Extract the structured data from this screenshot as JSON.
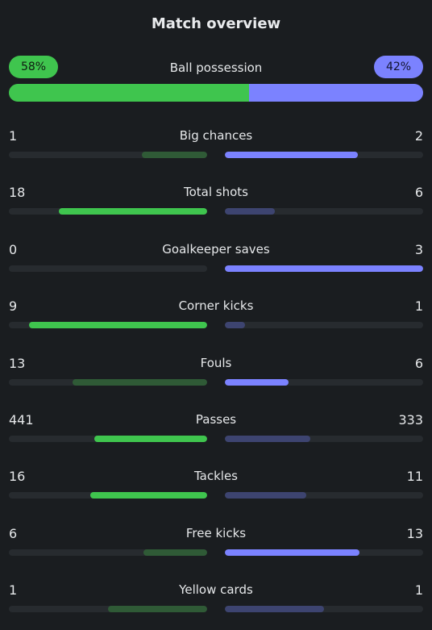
{
  "title": "Match overview",
  "possession": {
    "label": "Ball possession",
    "home_text": "58%",
    "away_text": "42%",
    "home_fraction": 0.58,
    "away_fraction": 0.42
  },
  "colors": {
    "home_strong": "#3fc54e",
    "home_weak": "#2f5a36",
    "away_strong": "#7b82ff",
    "away_weak": "#3d4470"
  },
  "stats": [
    {
      "label": "Big chances",
      "home": "1",
      "away": "2",
      "home_fill": 0.33,
      "away_fill": 0.67,
      "leader": "away"
    },
    {
      "label": "Total shots",
      "home": "18",
      "away": "6",
      "home_fill": 0.75,
      "away_fill": 0.25,
      "leader": "home"
    },
    {
      "label": "Goalkeeper saves",
      "home": "0",
      "away": "3",
      "home_fill": 0.0,
      "away_fill": 1.0,
      "leader": "away"
    },
    {
      "label": "Corner kicks",
      "home": "9",
      "away": "1",
      "home_fill": 0.9,
      "away_fill": 0.1,
      "leader": "home"
    },
    {
      "label": "Fouls",
      "home": "13",
      "away": "6",
      "home_fill": 0.68,
      "away_fill": 0.32,
      "leader": "away"
    },
    {
      "label": "Passes",
      "home": "441",
      "away": "333",
      "home_fill": 0.57,
      "away_fill": 0.43,
      "leader": "home"
    },
    {
      "label": "Tackles",
      "home": "16",
      "away": "11",
      "home_fill": 0.59,
      "away_fill": 0.41,
      "leader": "home"
    },
    {
      "label": "Free kicks",
      "home": "6",
      "away": "13",
      "home_fill": 0.32,
      "away_fill": 0.68,
      "leader": "away"
    },
    {
      "label": "Yellow cards",
      "home": "1",
      "away": "1",
      "home_fill": 0.5,
      "away_fill": 0.5,
      "leader": "none"
    }
  ]
}
